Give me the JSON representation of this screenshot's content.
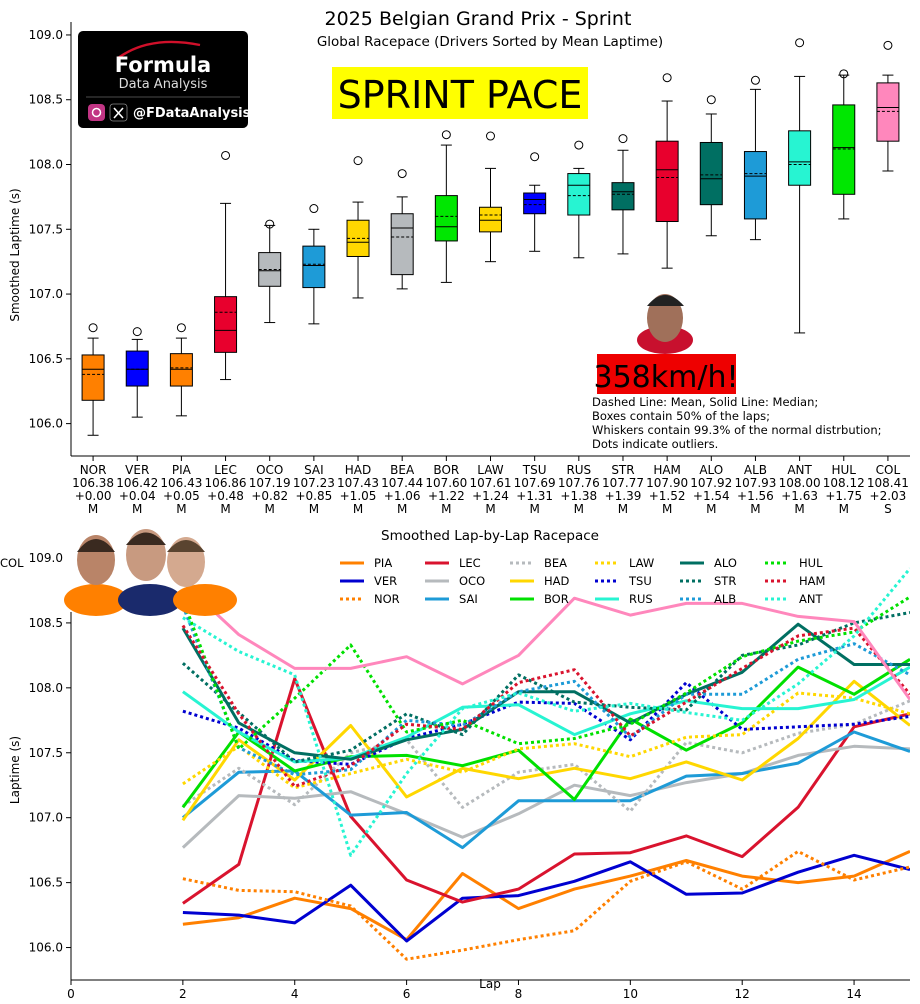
{
  "title": "2025 Belgian Grand Prix - Sprint",
  "subtitle": "Global Racepace (Drivers Sorted by Mean Laptime)",
  "banner": "SPRINT PACE",
  "speed_badge": "358km/h!",
  "logo": {
    "brand_line1": "Formula",
    "brand_line2": "Data Analysis",
    "handle": "@FDataAnalysis",
    "icons": [
      "instagram-icon",
      "x-icon"
    ]
  },
  "legend_note": [
    "Dashed Line: Mean, Solid Line: Median;",
    "Boxes contain 50% of the laps;",
    "Whiskers contain 99.3% of the normal distrbution;",
    "Dots indicate outliers."
  ],
  "chart_data": [
    {
      "type": "box",
      "ylabel": "Smoothed Laptime (s)",
      "ylim": [
        105.75,
        109.1
      ],
      "yticks": [
        106.0,
        106.5,
        107.0,
        107.5,
        108.0,
        108.5,
        109.0
      ],
      "drivers": [
        {
          "code": "NOR",
          "mean": "106.38",
          "gap": "+0.00",
          "tyre": "M",
          "color": "#FF8000",
          "q1": 106.18,
          "median": 106.42,
          "q3": 106.53,
          "lo": 105.91,
          "hi": 106.66,
          "mean_v": 106.38,
          "outliers": [
            106.74
          ]
        },
        {
          "code": "VER",
          "mean": "106.42",
          "gap": "+0.04",
          "tyre": "M",
          "color": "#0000FF",
          "q1": 106.29,
          "median": 106.42,
          "q3": 106.56,
          "lo": 106.05,
          "hi": 106.65,
          "mean_v": 106.42,
          "outliers": [
            106.71
          ]
        },
        {
          "code": "PIA",
          "mean": "106.43",
          "gap": "+0.05",
          "tyre": "M",
          "color": "#FF8000",
          "q1": 106.29,
          "median": 106.42,
          "q3": 106.54,
          "lo": 106.06,
          "hi": 106.66,
          "mean_v": 106.43,
          "outliers": [
            106.74
          ]
        },
        {
          "code": "LEC",
          "mean": "106.86",
          "gap": "+0.48",
          "tyre": "M",
          "color": "#E8002D",
          "q1": 106.55,
          "median": 106.72,
          "q3": 106.98,
          "lo": 106.34,
          "hi": 107.7,
          "mean_v": 106.86,
          "outliers": [
            108.07
          ]
        },
        {
          "code": "OCO",
          "mean": "107.19",
          "gap": "+0.82",
          "tyre": "M",
          "color": "#B6BABD",
          "q1": 107.06,
          "median": 107.18,
          "q3": 107.32,
          "lo": 106.78,
          "hi": 107.53,
          "mean_v": 107.19,
          "outliers": [
            107.54
          ]
        },
        {
          "code": "SAI",
          "mean": "107.23",
          "gap": "+0.85",
          "tyre": "M",
          "color": "#1E9BD7",
          "q1": 107.05,
          "median": 107.22,
          "q3": 107.37,
          "lo": 106.77,
          "hi": 107.5,
          "mean_v": 107.23,
          "outliers": [
            107.66
          ]
        },
        {
          "code": "HAD",
          "mean": "107.43",
          "gap": "+1.05",
          "tyre": "M",
          "color": "#FFD700",
          "q1": 107.29,
          "median": 107.4,
          "q3": 107.57,
          "lo": 106.97,
          "hi": 107.71,
          "mean_v": 107.43,
          "outliers": [
            108.03
          ]
        },
        {
          "code": "BEA",
          "mean": "107.44",
          "gap": "+1.06",
          "tyre": "M",
          "color": "#B6BABD",
          "q1": 107.15,
          "median": 107.51,
          "q3": 107.62,
          "lo": 107.04,
          "hi": 107.75,
          "mean_v": 107.44,
          "outliers": [
            107.93
          ]
        },
        {
          "code": "BOR",
          "mean": "107.60",
          "gap": "+1.22",
          "tyre": "M",
          "color": "#00E701",
          "q1": 107.41,
          "median": 107.52,
          "q3": 107.76,
          "lo": 107.09,
          "hi": 108.15,
          "mean_v": 107.6,
          "outliers": [
            108.23
          ]
        },
        {
          "code": "LAW",
          "mean": "107.61",
          "gap": "+1.24",
          "tyre": "M",
          "color": "#FFD700",
          "q1": 107.48,
          "median": 107.57,
          "q3": 107.67,
          "lo": 107.25,
          "hi": 107.97,
          "mean_v": 107.61,
          "outliers": [
            108.22
          ]
        },
        {
          "code": "TSU",
          "mean": "107.69",
          "gap": "+1.31",
          "tyre": "M",
          "color": "#0000FF",
          "q1": 107.62,
          "median": 107.73,
          "q3": 107.78,
          "lo": 107.33,
          "hi": 107.84,
          "mean_v": 107.69,
          "outliers": [
            108.06
          ]
        },
        {
          "code": "RUS",
          "mean": "107.76",
          "gap": "+1.38",
          "tyre": "M",
          "color": "#27F4D2",
          "q1": 107.61,
          "median": 107.84,
          "q3": 107.93,
          "lo": 107.28,
          "hi": 107.97,
          "mean_v": 107.76,
          "outliers": [
            108.15
          ]
        },
        {
          "code": "STR",
          "mean": "107.77",
          "gap": "+1.39",
          "tyre": "M",
          "color": "#006F62",
          "q1": 107.65,
          "median": 107.79,
          "q3": 107.86,
          "lo": 107.31,
          "hi": 108.11,
          "mean_v": 107.77,
          "outliers": [
            108.2
          ]
        },
        {
          "code": "HAM",
          "mean": "107.90",
          "gap": "+1.52",
          "tyre": "M",
          "color": "#E8002D",
          "q1": 107.56,
          "median": 107.96,
          "q3": 108.18,
          "lo": 107.2,
          "hi": 108.49,
          "mean_v": 107.9,
          "outliers": [
            108.67
          ]
        },
        {
          "code": "ALO",
          "mean": "107.92",
          "gap": "+1.54",
          "tyre": "M",
          "color": "#006F62",
          "q1": 107.69,
          "median": 107.89,
          "q3": 108.17,
          "lo": 107.45,
          "hi": 108.39,
          "mean_v": 107.92,
          "outliers": [
            108.5
          ]
        },
        {
          "code": "ALB",
          "mean": "107.93",
          "gap": "+1.56",
          "tyre": "M",
          "color": "#1E9BD7",
          "q1": 107.58,
          "median": 107.91,
          "q3": 108.1,
          "lo": 107.42,
          "hi": 108.58,
          "mean_v": 107.93,
          "outliers": [
            108.65
          ]
        },
        {
          "code": "ANT",
          "mean": "108.00",
          "gap": "+1.63",
          "tyre": "M",
          "color": "#27F4D2",
          "q1": 107.84,
          "median": 108.02,
          "q3": 108.26,
          "lo": 106.7,
          "hi": 108.68,
          "mean_v": 108.0,
          "outliers": [
            108.94
          ]
        },
        {
          "code": "HUL",
          "mean": "108.12",
          "gap": "+1.75",
          "tyre": "M",
          "color": "#00E701",
          "q1": 107.77,
          "median": 108.13,
          "q3": 108.46,
          "lo": 107.58,
          "hi": 108.69,
          "mean_v": 108.12,
          "outliers": [
            108.7
          ]
        },
        {
          "code": "COL",
          "mean": "108.41",
          "gap": "+2.03",
          "tyre": "S",
          "color": "#FF87BC",
          "q1": 108.18,
          "median": 108.44,
          "q3": 108.63,
          "lo": 107.95,
          "hi": 108.69,
          "mean_v": 108.41,
          "outliers": [
            108.92
          ]
        }
      ]
    },
    {
      "type": "line",
      "title": "Smoothed Lap-by-Lap Racepace",
      "xlabel": "Lap",
      "ylabel": "Laptime (s)",
      "xlim": [
        0,
        15
      ],
      "ylim": [
        105.75,
        109.1
      ],
      "xticks": [
        0,
        2,
        4,
        6,
        8,
        10,
        12,
        14
      ],
      "yticks": [
        106.0,
        106.5,
        107.0,
        107.5,
        108.0,
        108.5,
        109.0
      ],
      "x": [
        2,
        3,
        4,
        5,
        6,
        7,
        8,
        9,
        10,
        11,
        12,
        13,
        14,
        15
      ],
      "series": [
        {
          "name": "PIA",
          "color": "#FF8000",
          "dash": "solid",
          "values": [
            106.18,
            106.23,
            106.38,
            106.3,
            106.06,
            106.57,
            106.3,
            106.45,
            106.55,
            106.67,
            106.55,
            106.5,
            106.55,
            106.74
          ]
        },
        {
          "name": "VER",
          "color": "#0000D0",
          "dash": "solid",
          "values": [
            106.27,
            106.25,
            106.19,
            106.48,
            106.05,
            106.38,
            106.4,
            106.51,
            106.66,
            106.41,
            106.42,
            106.58,
            106.71,
            106.6
          ]
        },
        {
          "name": "NOR",
          "color": "#FF8000",
          "dash": "dot",
          "values": [
            106.53,
            106.44,
            106.43,
            106.32,
            105.91,
            105.98,
            106.06,
            106.13,
            106.51,
            106.66,
            106.45,
            106.74,
            106.52,
            106.62
          ]
        },
        {
          "name": "LEC",
          "color": "#D9132E",
          "dash": "solid",
          "values": [
            106.34,
            106.64,
            108.07,
            107.01,
            106.52,
            106.35,
            106.45,
            106.72,
            106.73,
            106.86,
            106.7,
            107.08,
            107.7,
            107.8
          ]
        },
        {
          "name": "OCO",
          "color": "#B6BABD",
          "dash": "solid",
          "values": [
            106.77,
            107.17,
            107.15,
            107.2,
            107.03,
            106.85,
            107.03,
            107.25,
            107.17,
            107.27,
            107.34,
            107.48,
            107.55,
            107.53
          ]
        },
        {
          "name": "SAI",
          "color": "#1E9BD7",
          "dash": "solid",
          "values": [
            107.0,
            107.35,
            107.36,
            107.02,
            107.04,
            106.77,
            107.13,
            107.13,
            107.13,
            107.32,
            107.34,
            107.42,
            107.66,
            107.51
          ]
        },
        {
          "name": "BEA",
          "color": "#B6BABD",
          "dash": "dot",
          "values": [
            107.09,
            107.38,
            107.1,
            107.5,
            107.6,
            107.08,
            107.35,
            107.41,
            107.05,
            107.58,
            107.5,
            107.65,
            107.72,
            107.9
          ]
        },
        {
          "name": "HAD",
          "color": "#FFD700",
          "dash": "solid",
          "values": [
            106.98,
            107.6,
            107.29,
            107.71,
            107.16,
            107.38,
            107.3,
            107.38,
            107.3,
            107.43,
            107.29,
            107.61,
            108.05,
            107.71
          ]
        },
        {
          "name": "BOR",
          "color": "#00E000",
          "dash": "solid",
          "values": [
            107.08,
            107.66,
            107.36,
            107.47,
            107.48,
            107.4,
            107.52,
            107.14,
            107.76,
            107.52,
            107.73,
            108.16,
            107.95,
            108.22
          ]
        },
        {
          "name": "LAW",
          "color": "#FFD700",
          "dash": "dot",
          "values": [
            107.26,
            107.55,
            107.23,
            107.34,
            107.45,
            107.35,
            107.53,
            107.57,
            107.47,
            107.62,
            107.64,
            107.96,
            107.92,
            107.8
          ]
        },
        {
          "name": "TSU",
          "color": "#0000D0",
          "dash": "dot",
          "values": [
            107.82,
            107.69,
            107.44,
            107.41,
            107.61,
            107.72,
            107.89,
            107.88,
            107.6,
            108.04,
            107.68,
            107.7,
            107.72,
            107.78
          ]
        },
        {
          "name": "RUS",
          "color": "#27F4D2",
          "dash": "solid",
          "values": [
            107.97,
            107.66,
            107.43,
            107.46,
            107.62,
            107.85,
            107.87,
            107.64,
            107.8,
            107.9,
            107.84,
            107.84,
            107.91,
            108.16
          ]
        },
        {
          "name": "ALO",
          "color": "#006F62",
          "dash": "solid",
          "values": [
            108.46,
            107.73,
            107.5,
            107.45,
            107.6,
            107.68,
            107.97,
            107.97,
            107.73,
            107.95,
            108.12,
            108.49,
            108.18,
            108.18
          ]
        },
        {
          "name": "STR",
          "color": "#006F62",
          "dash": "dot",
          "values": [
            108.19,
            107.81,
            107.43,
            107.52,
            107.8,
            107.64,
            108.1,
            107.89,
            107.85,
            107.83,
            108.25,
            108.33,
            108.5,
            108.58
          ]
        },
        {
          "name": "ALB",
          "color": "#1E9BD7",
          "dash": "dot",
          "values": [
            108.63,
            107.54,
            107.33,
            107.37,
            107.75,
            107.71,
            107.97,
            108.05,
            107.62,
            107.95,
            107.95,
            108.22,
            108.34,
            108.1
          ]
        },
        {
          "name": "HUL",
          "color": "#00E000",
          "dash": "dot",
          "values": [
            108.68,
            107.53,
            107.92,
            108.33,
            107.66,
            107.75,
            107.57,
            107.61,
            107.72,
            107.96,
            108.24,
            108.36,
            108.43,
            108.7
          ]
        },
        {
          "name": "HAM",
          "color": "#D9132E",
          "dash": "dot",
          "values": [
            108.48,
            107.8,
            107.24,
            107.4,
            107.72,
            107.68,
            108.04,
            108.14,
            107.63,
            107.89,
            108.15,
            108.4,
            108.46,
            107.95
          ]
        },
        {
          "name": "ANT",
          "color": "#27F4D2",
          "dash": "dot",
          "values": [
            108.54,
            108.28,
            108.1,
            106.71,
            107.34,
            107.84,
            107.96,
            107.82,
            107.88,
            107.81,
            107.75,
            108.03,
            108.4,
            108.92
          ]
        },
        {
          "name": "COL",
          "color": "#FF87BC",
          "dash": "solid",
          "values": [
            108.81,
            108.41,
            108.15,
            108.15,
            108.24,
            108.03,
            108.25,
            108.69,
            108.56,
            108.65,
            108.65,
            108.55,
            108.51,
            107.91
          ]
        }
      ]
    }
  ]
}
